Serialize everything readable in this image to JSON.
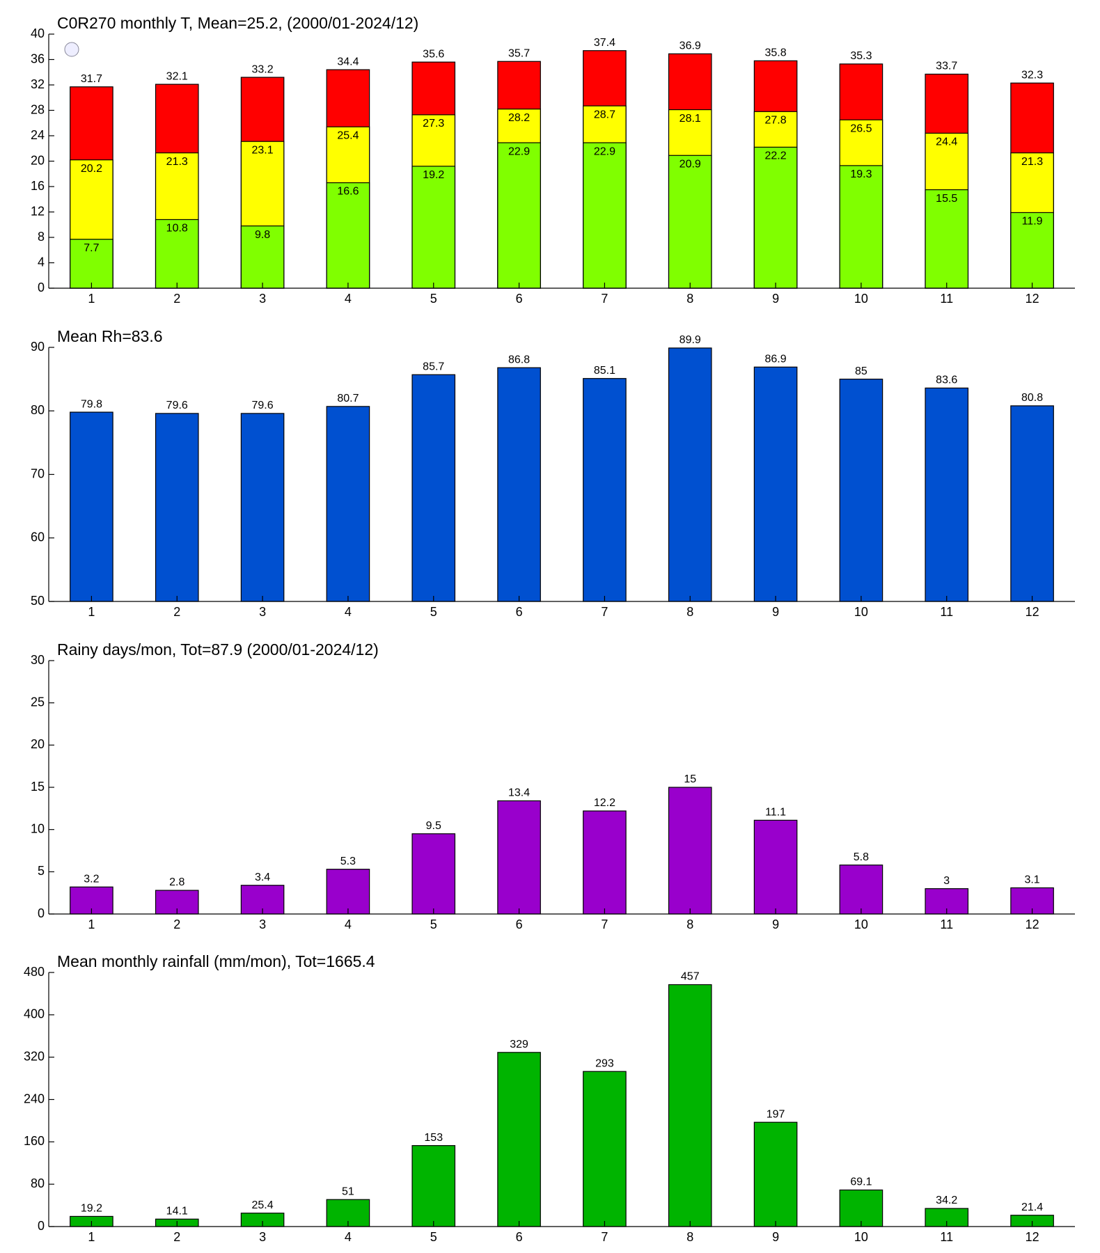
{
  "chart_data": [
    {
      "type": "bar",
      "title": "C0R270 monthly T, Mean=25.2, (2000/01-2024/12)",
      "categories": [
        1,
        2,
        3,
        4,
        5,
        6,
        7,
        8,
        9,
        10,
        11,
        12
      ],
      "series": [
        {
          "color": "#ff0000",
          "values": [
            31.7,
            32.1,
            33.2,
            34.4,
            35.6,
            35.7,
            37.4,
            36.9,
            35.8,
            35.3,
            33.7,
            32.3
          ]
        },
        {
          "color": "#ffff00",
          "values": [
            20.2,
            21.3,
            23.1,
            25.4,
            27.3,
            28.2,
            28.7,
            28.1,
            27.8,
            26.5,
            24.4,
            21.3
          ]
        },
        {
          "color": "#80ff00",
          "values": [
            7.7,
            10.8,
            9.8,
            16.6,
            19.2,
            22.9,
            22.9,
            20.9,
            22.2,
            19.3,
            15.5,
            11.9
          ]
        }
      ],
      "ylim": [
        0,
        40
      ],
      "yticks": [
        0,
        4,
        8,
        12,
        16,
        20,
        24,
        28,
        32,
        36,
        40
      ]
    },
    {
      "type": "bar",
      "title": "Mean Rh=83.6",
      "categories": [
        1,
        2,
        3,
        4,
        5,
        6,
        7,
        8,
        9,
        10,
        11,
        12
      ],
      "series": [
        {
          "color": "#0050d0",
          "values": [
            79.8,
            79.6,
            79.6,
            80.7,
            85.7,
            86.8,
            85.1,
            89.9,
            86.9,
            85,
            83.6,
            80.8
          ]
        }
      ],
      "ylim": [
        50,
        90
      ],
      "yticks": [
        50,
        60,
        70,
        80,
        90
      ]
    },
    {
      "type": "bar",
      "title": "Rainy days/mon, Tot=87.9 (2000/01-2024/12)",
      "categories": [
        1,
        2,
        3,
        4,
        5,
        6,
        7,
        8,
        9,
        10,
        11,
        12
      ],
      "series": [
        {
          "color": "#9900cc",
          "values": [
            3.2,
            2.8,
            3.4,
            5.3,
            9.5,
            13.4,
            12.2,
            15,
            11.1,
            5.8,
            3,
            3.1
          ]
        }
      ],
      "ylim": [
        0,
        30
      ],
      "yticks": [
        0,
        5,
        10,
        15,
        20,
        25,
        30
      ]
    },
    {
      "type": "bar",
      "title": "Mean monthly rainfall (mm/mon), Tot=1665.4",
      "categories": [
        1,
        2,
        3,
        4,
        5,
        6,
        7,
        8,
        9,
        10,
        11,
        12
      ],
      "series": [
        {
          "color": "#00b400",
          "values": [
            19.2,
            14.1,
            25.4,
            51,
            153,
            329,
            293,
            457,
            197,
            69.1,
            34.2,
            21.4
          ]
        }
      ],
      "ylim": [
        0,
        480
      ],
      "yticks": [
        0,
        80,
        160,
        240,
        320,
        400,
        480
      ]
    }
  ]
}
